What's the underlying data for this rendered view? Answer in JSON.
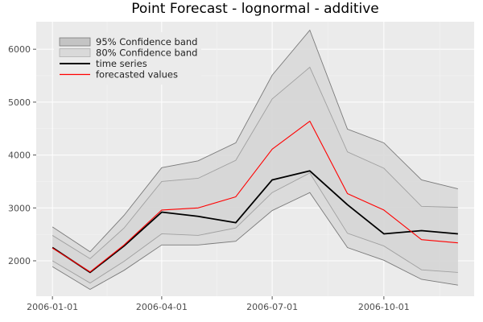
{
  "chart_data": {
    "type": "line",
    "title": "Point Forecast - lognormal - additive",
    "xlabel": "",
    "ylabel": "",
    "x": [
      "2006-01-01",
      "2006-02-01",
      "2006-03-01",
      "2006-04-01",
      "2006-05-01",
      "2006-06-01",
      "2006-07-01",
      "2006-08-01",
      "2006-09-01",
      "2006-10-01",
      "2006-11-01",
      "2006-12-01"
    ],
    "x_ticks": [
      "2006-01-01",
      "2006-04-01",
      "2006-07-01",
      "2006-10-01"
    ],
    "y_ticks": [
      2000,
      3000,
      4000,
      5000,
      6000
    ],
    "ylim": [
      1330,
      6520
    ],
    "grid": true,
    "legend_position": "top-left",
    "bands": [
      {
        "name": "95% Confidence band",
        "lower": [
          1890,
          1460,
          1820,
          2300,
          2300,
          2370,
          2950,
          3290,
          2250,
          2010,
          1650,
          1540
        ],
        "upper": [
          2640,
          2170,
          2860,
          3760,
          3890,
          4230,
          5510,
          6360,
          4490,
          4230,
          3530,
          3360
        ],
        "color": "#d8d8d8"
      },
      {
        "name": "80% Confidence band",
        "lower": [
          2000,
          1580,
          1990,
          2510,
          2480,
          2620,
          3290,
          3660,
          2520,
          2280,
          1830,
          1780
        ],
        "upper": [
          2480,
          2040,
          2620,
          3500,
          3560,
          3900,
          5060,
          5660,
          4060,
          3750,
          3030,
          3010
        ],
        "color": "#d3d3d3"
      }
    ],
    "series": [
      {
        "name": "time series",
        "values": [
          2250,
          1780,
          2280,
          2920,
          2840,
          2720,
          3530,
          3700,
          3060,
          2510,
          2570,
          2510
        ],
        "color": "#000000"
      },
      {
        "name": "forecasted values",
        "values": [
          2240,
          1790,
          2300,
          2960,
          3000,
          3210,
          4110,
          4640,
          3270,
          2960,
          2400,
          2340
        ],
        "color": "#ff0000"
      }
    ]
  }
}
